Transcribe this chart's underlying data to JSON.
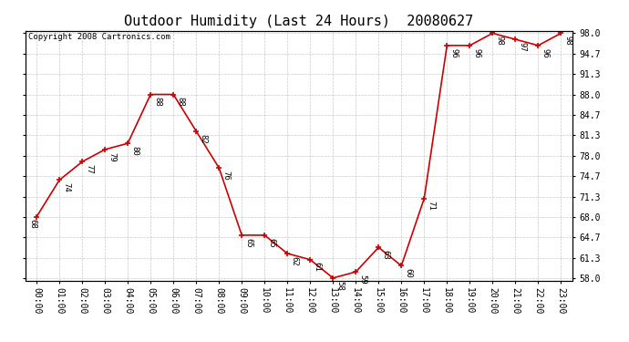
{
  "title": "Outdoor Humidity (Last 24 Hours)  20080627",
  "copyright_text": "Copyright 2008 Cartronics.com",
  "hours": [
    0,
    1,
    2,
    3,
    4,
    5,
    6,
    7,
    8,
    9,
    10,
    11,
    12,
    13,
    14,
    15,
    16,
    17,
    18,
    19,
    20,
    21,
    22,
    23
  ],
  "values": [
    68,
    74,
    77,
    79,
    80,
    88,
    88,
    82,
    76,
    65,
    65,
    62,
    61,
    58,
    59,
    63,
    60,
    71,
    96,
    96,
    98,
    97,
    96,
    98
  ],
  "line_color": "#cc0000",
  "marker_color": "#cc0000",
  "background_color": "#ffffff",
  "grid_color": "#bbbbbb",
  "ylim_min": 58.0,
  "ylim_max": 98.0,
  "ytick_values": [
    58.0,
    61.3,
    64.7,
    68.0,
    71.3,
    74.7,
    78.0,
    81.3,
    84.7,
    88.0,
    91.3,
    94.7,
    98.0
  ],
  "ytick_labels": [
    "58.0",
    "61.3",
    "64.7",
    "68.0",
    "71.3",
    "74.7",
    "78.0",
    "81.3",
    "84.7",
    "88.0",
    "91.3",
    "94.7",
    "98.0"
  ],
  "title_fontsize": 11,
  "tick_fontsize": 7,
  "annotation_fontsize": 6.5,
  "copyright_fontsize": 6.5
}
